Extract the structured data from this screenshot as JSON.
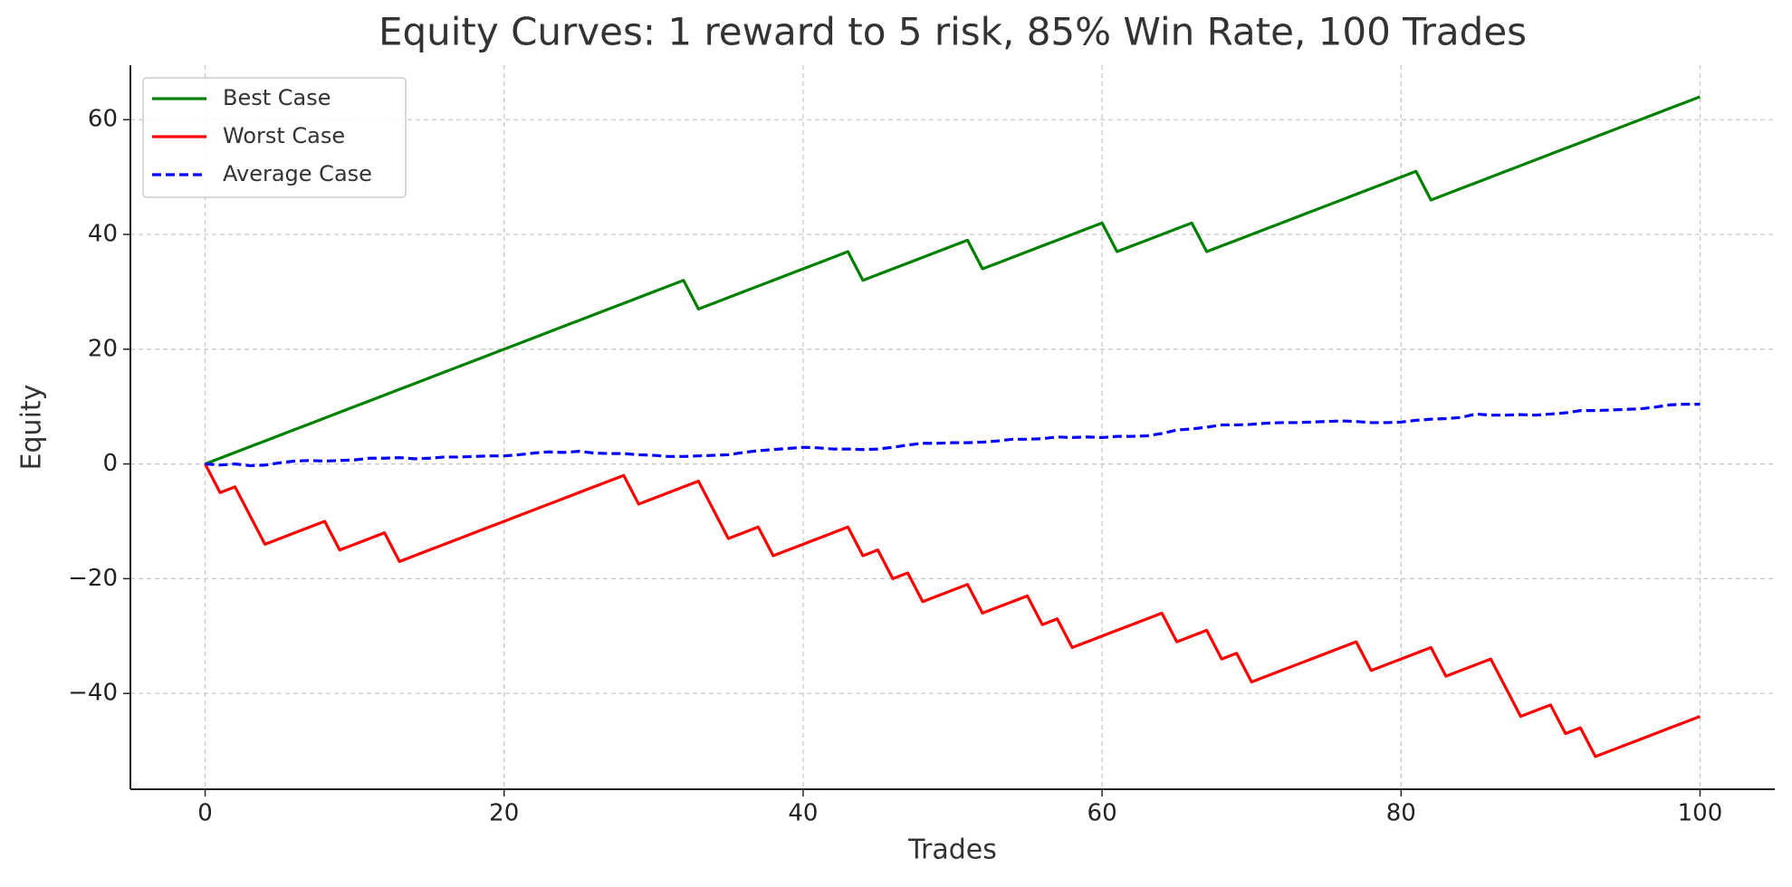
{
  "chart_data": {
    "type": "line",
    "title": "Equity Curves: 1 reward to 5 risk, 85% Win Rate, 100 Trades",
    "x_label": "Trades",
    "y_label": "Equity",
    "x": [
      0,
      1,
      2,
      3,
      4,
      5,
      6,
      7,
      8,
      9,
      10,
      11,
      12,
      13,
      14,
      15,
      16,
      17,
      18,
      19,
      20,
      21,
      22,
      23,
      24,
      25,
      26,
      27,
      28,
      29,
      30,
      31,
      32,
      33,
      34,
      35,
      36,
      37,
      38,
      39,
      40,
      41,
      42,
      43,
      44,
      45,
      46,
      47,
      48,
      49,
      50,
      51,
      52,
      53,
      54,
      55,
      56,
      57,
      58,
      59,
      60,
      61,
      62,
      63,
      64,
      65,
      66,
      67,
      68,
      69,
      70,
      71,
      72,
      73,
      74,
      75,
      76,
      77,
      78,
      79,
      80,
      81,
      82,
      83,
      84,
      85,
      86,
      87,
      88,
      89,
      90,
      91,
      92,
      93,
      94,
      95,
      96,
      97,
      98,
      99,
      100
    ],
    "series": [
      {
        "name": "Best Case",
        "color": "#008000",
        "dash": false,
        "values": [
          0,
          1,
          2,
          3,
          4,
          5,
          6,
          7,
          8,
          9,
          10,
          11,
          12,
          13,
          14,
          15,
          16,
          17,
          18,
          19,
          20,
          21,
          22,
          23,
          24,
          25,
          26,
          27,
          28,
          29,
          30,
          31,
          32,
          27,
          28,
          29,
          30,
          31,
          32,
          33,
          34,
          35,
          36,
          37,
          32,
          33,
          34,
          35,
          36,
          37,
          38,
          39,
          34,
          35,
          36,
          37,
          38,
          39,
          40,
          41,
          42,
          37,
          38,
          39,
          40,
          41,
          42,
          37,
          38,
          39,
          40,
          41,
          42,
          43,
          44,
          45,
          46,
          47,
          48,
          49,
          50,
          51,
          46,
          47,
          48,
          49,
          50,
          51,
          52,
          53,
          54,
          55,
          56,
          57,
          58,
          59,
          60,
          61,
          62,
          63,
          64
        ]
      },
      {
        "name": "Worst Case",
        "color": "#ff0000",
        "dash": false,
        "values": [
          0,
          -5,
          -4,
          -9,
          -14,
          -13,
          -12,
          -11,
          -10,
          -15,
          -14,
          -13,
          -12,
          -17,
          -16,
          -15,
          -14,
          -13,
          -12,
          -11,
          -10,
          -9,
          -8,
          -7,
          -6,
          -5,
          -4,
          -3,
          -2,
          -7,
          -6,
          -5,
          -4,
          -3,
          -8,
          -13,
          -12,
          -11,
          -16,
          -15,
          -14,
          -13,
          -12,
          -11,
          -16,
          -15,
          -20,
          -19,
          -24,
          -23,
          -22,
          -21,
          -26,
          -25,
          -24,
          -23,
          -28,
          -27,
          -32,
          -31,
          -30,
          -29,
          -28,
          -27,
          -26,
          -31,
          -30,
          -29,
          -34,
          -33,
          -38,
          -37,
          -36,
          -35,
          -34,
          -33,
          -32,
          -31,
          -36,
          -35,
          -34,
          -33,
          -32,
          -37,
          -36,
          -35,
          -34,
          -39,
          -44,
          -43,
          -42,
          -47,
          -46,
          -51,
          -50,
          -49,
          -48,
          -47,
          -46,
          -45,
          -44
        ]
      },
      {
        "name": "Average Case",
        "color": "#0000ff",
        "dash": true,
        "values": [
          0,
          -0.2,
          0,
          -0.3,
          -0.2,
          0.2,
          0.5,
          0.6,
          0.5,
          0.6,
          0.7,
          1,
          1,
          1.1,
          0.9,
          1,
          1.2,
          1.2,
          1.3,
          1.4,
          1.4,
          1.6,
          1.9,
          2.1,
          2,
          2.2,
          1.9,
          1.8,
          1.8,
          1.6,
          1.5,
          1.3,
          1.3,
          1.4,
          1.5,
          1.6,
          2,
          2.3,
          2.5,
          2.7,
          2.9,
          2.8,
          2.6,
          2.6,
          2.5,
          2.6,
          2.9,
          3.3,
          3.6,
          3.6,
          3.7,
          3.7,
          3.8,
          4,
          4.3,
          4.3,
          4.4,
          4.7,
          4.6,
          4.7,
          4.6,
          4.8,
          4.8,
          4.9,
          5.3,
          5.9,
          6.1,
          6.4,
          6.8,
          6.8,
          6.9,
          7.1,
          7.2,
          7.2,
          7.3,
          7.4,
          7.5,
          7.4,
          7.2,
          7.2,
          7.3,
          7.6,
          7.8,
          7.9,
          8.1,
          8.7,
          8.5,
          8.5,
          8.6,
          8.5,
          8.7,
          8.9,
          9.3,
          9.3,
          9.4,
          9.5,
          9.6,
          9.9,
          10.3,
          10.4,
          10.4
        ]
      }
    ],
    "xlim": [
      -5,
      105
    ],
    "ylim": [
      -56.7,
      69.5
    ],
    "xticks": [
      0,
      20,
      40,
      60,
      80,
      100
    ],
    "yticks": [
      {
        "value": -40,
        "label": "−40"
      },
      {
        "value": -20,
        "label": "−20"
      },
      0,
      20,
      40,
      60
    ],
    "grid": true,
    "legend": "upper left"
  }
}
